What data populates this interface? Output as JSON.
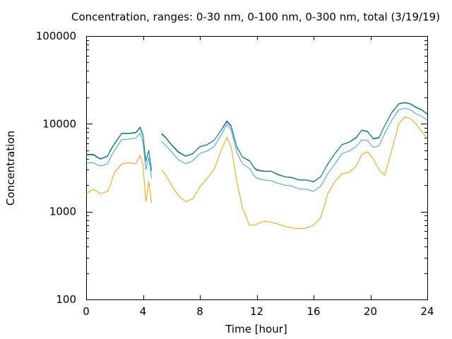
{
  "chart_data": {
    "type": "line",
    "title": "Concentration, ranges: 0-30 nm, 0-100 nm, 0-300 nm, total (3/19/19)",
    "xlabel": "Time [hour]",
    "ylabel": "Concentration",
    "xlim": [
      0,
      24
    ],
    "ylim": [
      100,
      100000
    ],
    "yscale": "log",
    "grid": false,
    "legend": "none",
    "x_ticks": [
      0,
      4,
      8,
      12,
      16,
      20,
      24
    ],
    "x_tick_labels": [
      "0",
      "4",
      "8",
      "12",
      "16",
      "20",
      "24"
    ],
    "y_ticks": [
      100,
      1000,
      10000,
      100000
    ],
    "y_tick_labels": [
      "100",
      "1000",
      "10000",
      "100000"
    ],
    "gap": [
      4.65,
      5.25
    ],
    "x": [
      0,
      0.5,
      1,
      1.5,
      1.7,
      2,
      2.5,
      3,
      3.5,
      3.8,
      4,
      4.2,
      4.4,
      4.6,
      5.3,
      5.6,
      6,
      6.5,
      7,
      7.5,
      8,
      8.5,
      9,
      9.5,
      9.9,
      10.2,
      10.6,
      11,
      11.5,
      11.8,
      12,
      12.5,
      13,
      13.5,
      14,
      14.5,
      15,
      15.5,
      16,
      16.5,
      17,
      17.5,
      18,
      18.5,
      19,
      19.4,
      19.8,
      20.2,
      20.6,
      21,
      21.5,
      22,
      22.4,
      22.8,
      23.2,
      23.6,
      24
    ],
    "series": [
      {
        "color": "#1a3c6e",
        "values": [
          4500,
          4500,
          4000,
          4300,
          5000,
          6000,
          7800,
          7800,
          8000,
          9200,
          7500,
          3800,
          5000,
          3000,
          7800,
          7000,
          5800,
          4800,
          4300,
          4600,
          5500,
          5800,
          6500,
          8500,
          10800,
          9500,
          5500,
          4200,
          3800,
          3200,
          3000,
          2900,
          2900,
          2650,
          2500,
          2450,
          2300,
          2300,
          2200,
          2500,
          3500,
          4600,
          5800,
          6200,
          7000,
          8500,
          8200,
          6800,
          7000,
          9500,
          13500,
          17000,
          17500,
          17000,
          15500,
          14500,
          13000
        ]
      },
      {
        "color": "#1e9a8e",
        "values": [
          4400,
          4400,
          3950,
          4250,
          4900,
          5900,
          7700,
          7700,
          7900,
          9000,
          7300,
          3700,
          4900,
          2900,
          7600,
          6900,
          5700,
          4700,
          4250,
          4550,
          5450,
          5750,
          6450,
          8400,
          10500,
          9300,
          5400,
          4150,
          3750,
          3150,
          2950,
          2870,
          2870,
          2620,
          2480,
          2420,
          2280,
          2280,
          2180,
          2480,
          3450,
          4550,
          5750,
          6150,
          6900,
          8400,
          8100,
          6700,
          6900,
          9400,
          13300,
          16800,
          17300,
          16800,
          15300,
          14300,
          12800
        ]
      },
      {
        "color": "#3aa0d0",
        "values": [
          3600,
          3600,
          3300,
          3500,
          4100,
          5000,
          6600,
          6700,
          6900,
          7800,
          6200,
          3000,
          4100,
          2400,
          6300,
          5700,
          4800,
          3900,
          3500,
          3800,
          4600,
          4900,
          5500,
          7500,
          9800,
          8600,
          4700,
          3500,
          3100,
          2600,
          2400,
          2300,
          2250,
          2100,
          2000,
          1950,
          1800,
          1800,
          1700,
          1950,
          2700,
          3500,
          4600,
          4900,
          5500,
          6600,
          6400,
          5400,
          5600,
          7700,
          11000,
          14500,
          15000,
          14500,
          13000,
          12200,
          11000
        ]
      },
      {
        "color": "#e6a200",
        "values": [
          1600,
          1800,
          1600,
          1700,
          2000,
          2800,
          3500,
          3600,
          3500,
          4400,
          3400,
          1300,
          2200,
          1250,
          3000,
          2600,
          2000,
          1500,
          1300,
          1400,
          1900,
          2400,
          3000,
          5000,
          7000,
          5500,
          2200,
          1100,
          700,
          700,
          720,
          780,
          760,
          720,
          680,
          650,
          640,
          650,
          700,
          850,
          1600,
          2200,
          2700,
          2800,
          3300,
          4500,
          4800,
          4000,
          3000,
          2600,
          5000,
          10000,
          12000,
          11500,
          10000,
          8200,
          6800
        ]
      }
    ]
  }
}
